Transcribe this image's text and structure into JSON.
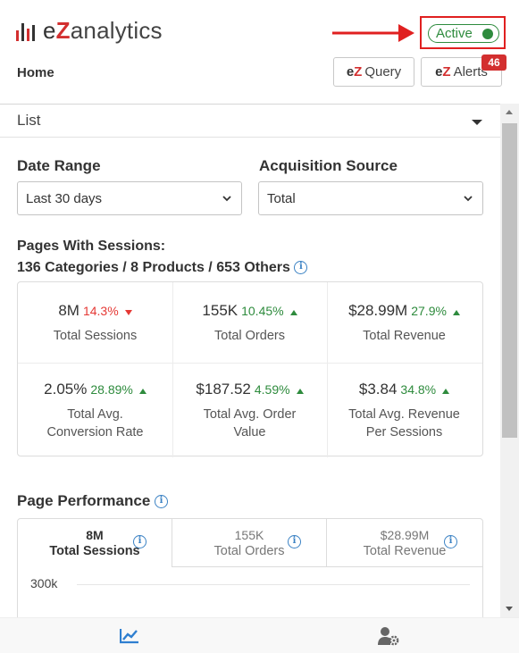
{
  "app": {
    "brand_e": "e",
    "brand_z": "Z",
    "brand_rest": "analytics",
    "brand_red": "#d32f2f",
    "status_label": "Active",
    "status_color": "#2e8b3d",
    "home_label": "Home",
    "query_button": {
      "prefix_e": "e",
      "prefix_z": "Z",
      "label": "Query"
    },
    "alerts_button": {
      "prefix_e": "e",
      "prefix_z": "Z",
      "label": "Alerts",
      "badge_count": "46"
    }
  },
  "view_selector": {
    "selected": "List"
  },
  "filters": {
    "date_range": {
      "label": "Date Range",
      "value": "Last 30 days"
    },
    "acquisition_source": {
      "label": "Acquisition Source",
      "value": "Total"
    }
  },
  "pages_with_sessions": {
    "line1": "Pages With Sessions:",
    "line2": "136 Categories / 8 Products / 653 Others",
    "info_icon": "info-icon"
  },
  "kpis": [
    {
      "value": "8M",
      "delta": "14.3%",
      "direction": "down",
      "label": "Total Sessions"
    },
    {
      "value": "155K",
      "delta": "10.45%",
      "direction": "up",
      "label": "Total Orders"
    },
    {
      "value": "$28.99M",
      "delta": "27.9%",
      "direction": "up",
      "label": "Total Revenue"
    },
    {
      "value": "2.05%",
      "delta": "28.89%",
      "direction": "up",
      "label_line1": "Total Avg.",
      "label_line2": "Conversion Rate"
    },
    {
      "value": "$187.52",
      "delta": "4.59%",
      "direction": "up",
      "label_line1": "Total Avg. Order",
      "label_line2": "Value"
    },
    {
      "value": "$3.84",
      "delta": "34.8%",
      "direction": "up",
      "label_line1": "Total Avg. Revenue",
      "label_line2": "Per Sessions"
    }
  ],
  "page_performance": {
    "title": "Page Performance",
    "tabs": [
      {
        "value": "8M",
        "label": "Total Sessions",
        "active": true
      },
      {
        "value": "155K",
        "label": "Total Orders",
        "active": false
      },
      {
        "value": "$28.99M",
        "label": "Total Revenue",
        "active": false
      }
    ],
    "y_axis_top_label": "300k"
  },
  "bottom_nav": [
    {
      "icon": "trend-chart-icon",
      "active": true
    },
    {
      "icon": "user-settings-icon",
      "active": false
    }
  ]
}
